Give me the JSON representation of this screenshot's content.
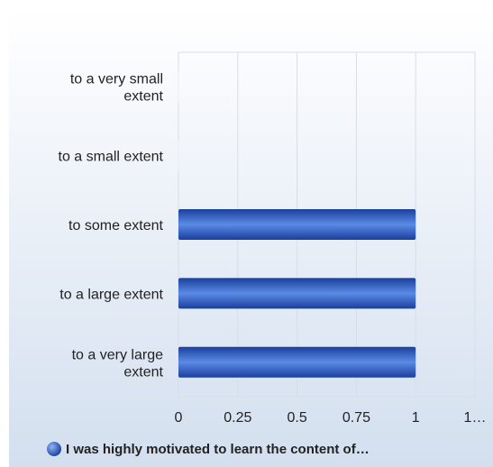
{
  "chart_data": {
    "type": "bar",
    "orientation": "horizontal",
    "categories": [
      "to a very small extent",
      "to a small extent",
      "to some extent",
      "to a large extent",
      "to a very large extent"
    ],
    "category_lines": [
      [
        "to a very small",
        "extent"
      ],
      [
        "to a small extent"
      ],
      [
        "to some extent"
      ],
      [
        "to a large extent"
      ],
      [
        "to a very large",
        "extent"
      ]
    ],
    "series": [
      {
        "name": "I was highly motivated to learn the content of…",
        "values": [
          0,
          0,
          1,
          1,
          1
        ]
      }
    ],
    "xlim": [
      0,
      1.25
    ],
    "xticks": [
      "0",
      "0.25",
      "0.5",
      "0.75",
      "1",
      "1…"
    ],
    "grid": true,
    "legend": "bottom",
    "colors": {
      "bar_dark": "#1a3f9c",
      "bar_light": "#5a8be6",
      "background_top": "#ffffff",
      "background_bottom": "#d3dfef",
      "grid": "#d8dee8"
    }
  }
}
